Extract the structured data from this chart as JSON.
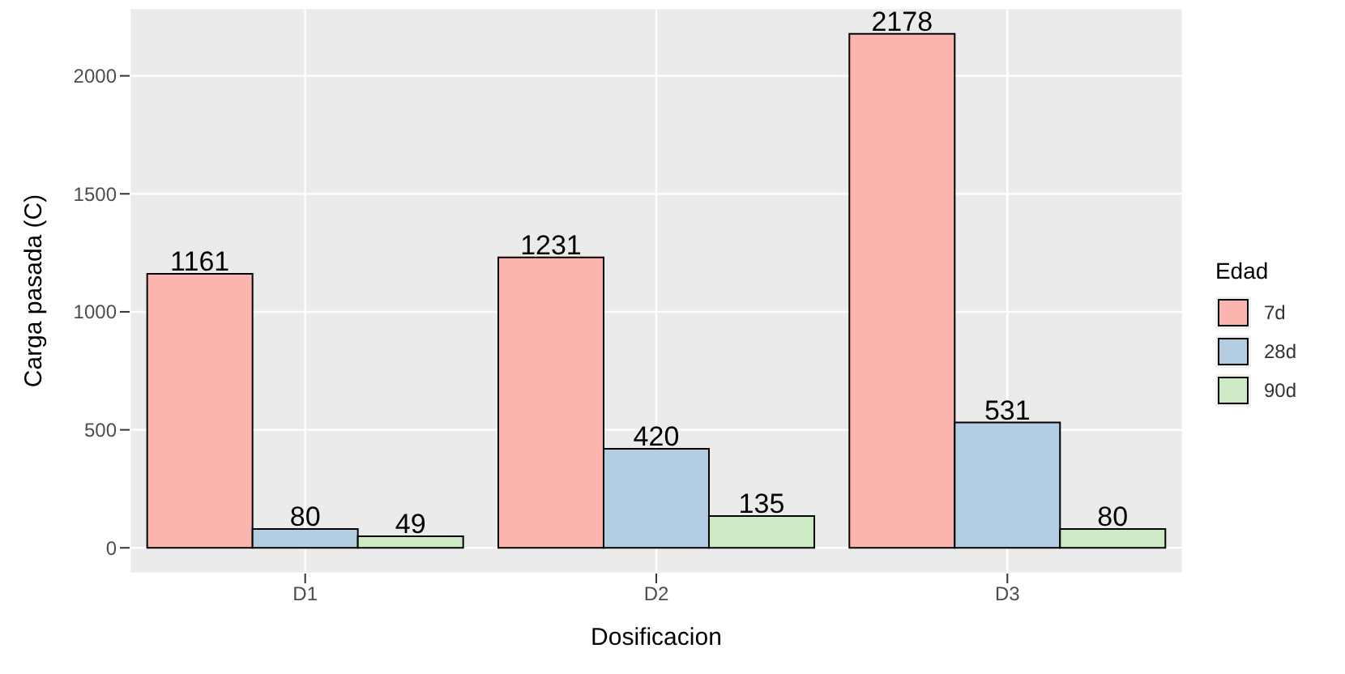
{
  "chart_data": {
    "type": "bar",
    "xlabel": "Dosificacion",
    "ylabel": "Carga  pasada (C)",
    "legend_title": "Edad",
    "categories": [
      "D1",
      "D2",
      "D3"
    ],
    "series": [
      {
        "name": "7d",
        "color": "#fbb4ae",
        "values": [
          1161,
          1231,
          2178
        ]
      },
      {
        "name": "28d",
        "color": "#b3cde3",
        "values": [
          80,
          420,
          531
        ]
      },
      {
        "name": "90d",
        "color": "#ccebc5",
        "values": [
          49,
          135,
          80
        ]
      }
    ],
    "ylim": [
      -109,
      2287
    ],
    "yticks": [
      0,
      500,
      1000,
      1500,
      2000
    ],
    "grid": true,
    "legend": "right",
    "data_labels": true
  }
}
